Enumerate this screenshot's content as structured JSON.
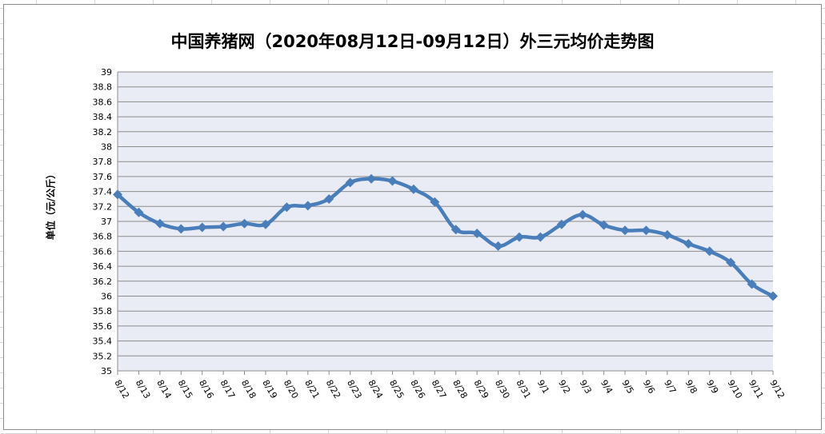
{
  "chart_data": {
    "type": "line",
    "title": "中国养猪网（2020年08月12日-09月12日）外三元均价走势图",
    "xlabel": "",
    "ylabel": "单位（元/公斤）",
    "ylim": [
      35,
      39
    ],
    "ytick_step": 0.2,
    "yticks": [
      "35",
      "35.2",
      "35.4",
      "35.6",
      "35.8",
      "36",
      "36.2",
      "36.4",
      "36.6",
      "36.8",
      "37",
      "37.2",
      "37.4",
      "37.6",
      "37.8",
      "38",
      "38.2",
      "38.4",
      "38.6",
      "38.8",
      "39"
    ],
    "grid": true,
    "legend": "none",
    "categories": [
      "8/12",
      "8/13",
      "8/14",
      "8/15",
      "8/16",
      "8/17",
      "8/18",
      "8/19",
      "8/20",
      "8/21",
      "8/22",
      "8/23",
      "8/24",
      "8/25",
      "8/26",
      "8/27",
      "8/28",
      "8/29",
      "8/30",
      "8/31",
      "9/1",
      "9/2",
      "9/3",
      "9/4",
      "9/5",
      "9/6",
      "9/7",
      "9/8",
      "9/9",
      "9/10",
      "9/11",
      "9/12"
    ],
    "series": [
      {
        "name": "外三元均价",
        "color": "#4a7ebb",
        "marker": "diamond",
        "values": [
          37.36,
          37.12,
          36.97,
          36.9,
          36.92,
          36.93,
          36.97,
          36.96,
          37.19,
          37.21,
          37.3,
          37.52,
          37.57,
          37.54,
          37.43,
          37.26,
          36.89,
          36.84,
          36.67,
          36.79,
          36.79,
          36.96,
          37.09,
          36.95,
          36.88,
          36.88,
          36.82,
          36.7,
          36.6,
          36.45,
          36.16,
          36.0
        ]
      }
    ]
  },
  "colors": {
    "plot_background": "#e9ecf4",
    "gridline": "#8c8c8c",
    "line": "#4a7ebb"
  }
}
